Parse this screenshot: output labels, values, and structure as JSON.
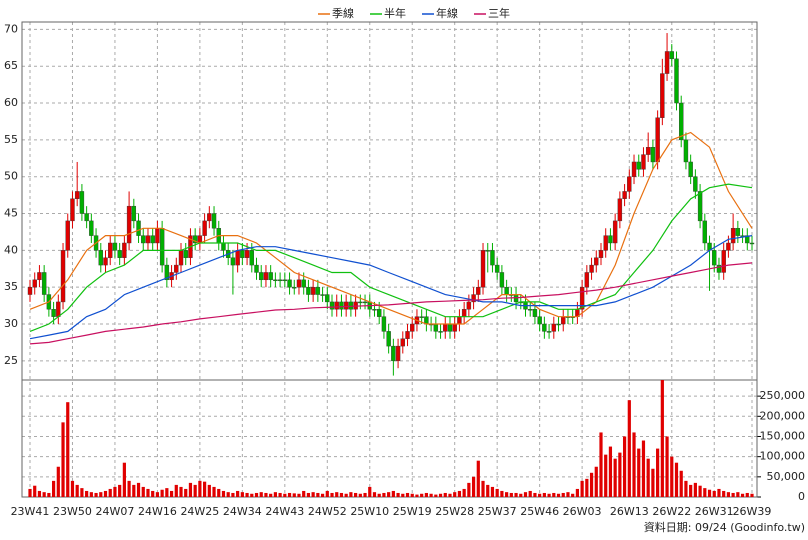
{
  "chart_data": {
    "type": "candlestick",
    "categories": [
      "23W41",
      null,
      null,
      null,
      null,
      null,
      null,
      null,
      null,
      "23W50",
      null,
      null,
      null,
      null,
      null,
      null,
      null,
      null,
      "24W07",
      null,
      null,
      null,
      null,
      null,
      null,
      null,
      null,
      "24W16",
      null,
      null,
      null,
      null,
      null,
      null,
      null,
      null,
      "24W25",
      null,
      null,
      null,
      null,
      null,
      null,
      null,
      null,
      "24W34",
      null,
      null,
      null,
      null,
      null,
      null,
      null,
      null,
      "24W43",
      null,
      null,
      null,
      null,
      null,
      null,
      null,
      null,
      "24W52",
      null,
      null,
      null,
      null,
      null,
      null,
      null,
      null,
      "25W10",
      null,
      null,
      null,
      null,
      null,
      null,
      null,
      null,
      "25W19",
      null,
      null,
      null,
      null,
      null,
      null,
      null,
      null,
      "25W28",
      null,
      null,
      null,
      null,
      null,
      null,
      null,
      null,
      "25W37",
      null,
      null,
      null,
      null,
      null,
      null,
      null,
      null,
      "25W46",
      null,
      null,
      null,
      null,
      null,
      null,
      null,
      null,
      "26W03",
      null,
      null,
      null,
      null,
      null,
      null,
      null,
      null,
      null,
      "26W13",
      null,
      null,
      null,
      null,
      null,
      null,
      null,
      null,
      "26W22",
      null,
      null,
      null,
      null,
      null,
      null,
      null,
      null,
      "26W31",
      null,
      null,
      null,
      null,
      null,
      null,
      null,
      "26W39"
    ],
    "ohlc": [
      [
        34,
        36,
        33,
        35
      ],
      [
        35,
        37,
        34,
        36
      ],
      [
        36,
        38,
        35,
        37
      ],
      [
        37,
        38,
        33,
        34
      ],
      [
        34,
        35,
        31,
        32
      ],
      [
        32,
        33,
        30,
        31
      ],
      [
        31,
        34,
        30,
        33
      ],
      [
        33,
        41,
        32,
        40
      ],
      [
        40,
        45,
        39,
        44
      ],
      [
        44,
        48,
        43,
        47
      ],
      [
        47,
        52,
        46,
        48
      ],
      [
        48,
        49,
        44,
        45
      ],
      [
        45,
        46,
        43,
        44
      ],
      [
        44,
        45,
        41,
        42
      ],
      [
        42,
        43,
        39,
        40
      ],
      [
        40,
        41,
        37,
        38
      ],
      [
        38,
        40,
        37,
        39
      ],
      [
        39,
        42,
        38,
        41
      ],
      [
        41,
        42,
        39,
        40
      ],
      [
        40,
        41,
        38,
        39
      ],
      [
        39,
        42,
        38,
        41
      ],
      [
        41,
        48,
        40,
        46
      ],
      [
        46,
        47,
        43,
        44
      ],
      [
        44,
        45,
        41,
        42
      ],
      [
        42,
        43,
        40,
        41
      ],
      [
        41,
        43,
        40,
        42
      ],
      [
        42,
        43,
        40,
        41
      ],
      [
        41,
        44,
        40,
        43
      ],
      [
        43,
        44,
        37,
        38
      ],
      [
        38,
        39,
        35,
        36
      ],
      [
        36,
        38,
        35,
        37
      ],
      [
        37,
        39,
        36,
        38
      ],
      [
        38,
        41,
        37,
        40
      ],
      [
        40,
        41,
        38,
        39
      ],
      [
        39,
        43,
        38,
        42
      ],
      [
        42,
        43,
        40,
        41
      ],
      [
        41,
        43,
        40,
        42
      ],
      [
        42,
        45,
        41,
        44
      ],
      [
        44,
        46,
        43,
        45
      ],
      [
        45,
        46,
        42,
        43
      ],
      [
        43,
        44,
        40,
        41
      ],
      [
        41,
        42,
        39,
        40
      ],
      [
        40,
        41,
        38,
        39
      ],
      [
        39,
        40,
        34,
        38
      ],
      [
        38,
        41,
        37,
        40
      ],
      [
        40,
        41,
        38,
        39
      ],
      [
        39,
        41,
        38,
        40
      ],
      [
        40,
        41,
        37,
        38
      ],
      [
        38,
        39,
        36,
        37
      ],
      [
        37,
        38,
        35,
        36
      ],
      [
        36,
        38,
        35,
        37
      ],
      [
        37,
        38,
        35,
        36
      ],
      [
        36,
        37,
        35,
        36
      ],
      [
        36,
        37,
        35,
        36
      ],
      [
        36,
        37,
        35,
        36
      ],
      [
        36,
        37,
        34,
        35
      ],
      [
        35,
        36,
        34,
        35
      ],
      [
        35,
        37,
        34,
        36
      ],
      [
        36,
        37,
        34,
        35
      ],
      [
        35,
        36,
        33,
        34
      ],
      [
        34,
        36,
        33,
        35
      ],
      [
        35,
        36,
        33,
        34
      ],
      [
        34,
        35,
        33,
        34
      ],
      [
        34,
        35,
        32,
        33
      ],
      [
        33,
        34,
        31,
        32
      ],
      [
        32,
        34,
        31,
        33
      ],
      [
        33,
        34,
        31,
        32
      ],
      [
        32,
        34,
        31,
        33
      ],
      [
        33,
        34,
        31,
        32
      ],
      [
        32,
        34,
        31,
        33
      ],
      [
        33,
        34,
        32,
        33
      ],
      [
        33,
        34,
        32,
        33
      ],
      [
        33,
        34,
        31,
        32
      ],
      [
        32,
        33,
        31,
        32
      ],
      [
        32,
        33,
        30,
        31
      ],
      [
        31,
        32,
        28,
        29
      ],
      [
        29,
        30,
        26,
        27
      ],
      [
        27,
        28,
        23,
        25
      ],
      [
        25,
        28,
        24,
        27
      ],
      [
        27,
        29,
        26,
        28
      ],
      [
        28,
        30,
        27,
        29
      ],
      [
        29,
        31,
        28,
        30
      ],
      [
        30,
        32,
        29,
        31
      ],
      [
        31,
        32,
        30,
        31
      ],
      [
        31,
        32,
        29,
        30
      ],
      [
        30,
        31,
        29,
        30
      ],
      [
        30,
        31,
        28,
        29
      ],
      [
        29,
        30,
        28,
        29
      ],
      [
        29,
        31,
        28,
        30
      ],
      [
        30,
        31,
        28,
        29
      ],
      [
        29,
        31,
        28,
        30
      ],
      [
        30,
        32,
        29,
        31
      ],
      [
        31,
        33,
        30,
        32
      ],
      [
        32,
        34,
        31,
        33
      ],
      [
        33,
        35,
        32,
        34
      ],
      [
        34,
        36,
        33,
        35
      ],
      [
        35,
        41,
        34,
        40
      ],
      [
        40,
        41,
        37,
        40
      ],
      [
        40,
        41,
        37,
        38
      ],
      [
        38,
        39,
        36,
        37
      ],
      [
        37,
        38,
        34,
        35
      ],
      [
        35,
        36,
        33,
        34
      ],
      [
        34,
        35,
        33,
        34
      ],
      [
        34,
        35,
        32,
        33
      ],
      [
        33,
        34,
        32,
        33
      ],
      [
        33,
        34,
        31,
        32
      ],
      [
        32,
        33,
        31,
        32
      ],
      [
        32,
        33,
        30,
        31
      ],
      [
        31,
        32,
        29,
        30
      ],
      [
        30,
        31,
        28,
        29
      ],
      [
        29,
        30,
        28,
        29
      ],
      [
        29,
        31,
        28,
        30
      ],
      [
        30,
        31,
        29,
        30
      ],
      [
        30,
        32,
        29,
        31
      ],
      [
        31,
        32,
        30,
        31
      ],
      [
        31,
        32,
        30,
        31
      ],
      [
        31,
        33,
        30,
        32
      ],
      [
        32,
        36,
        31,
        35
      ],
      [
        35,
        38,
        34,
        37
      ],
      [
        37,
        39,
        36,
        38
      ],
      [
        38,
        40,
        37,
        39
      ],
      [
        39,
        41,
        38,
        40
      ],
      [
        40,
        43,
        39,
        42
      ],
      [
        42,
        43,
        40,
        41
      ],
      [
        41,
        45,
        40,
        44
      ],
      [
        44,
        48,
        43,
        47
      ],
      [
        47,
        49,
        46,
        48
      ],
      [
        48,
        51,
        47,
        50
      ],
      [
        50,
        53,
        49,
        52
      ],
      [
        52,
        53,
        50,
        51
      ],
      [
        51,
        54,
        50,
        53
      ],
      [
        53,
        56,
        52,
        54
      ],
      [
        54,
        55,
        51,
        52
      ],
      [
        52,
        59,
        51,
        58
      ],
      [
        58,
        66,
        57,
        64
      ],
      [
        64,
        69.5,
        63,
        67
      ],
      [
        67,
        68,
        65,
        66
      ],
      [
        66,
        67,
        59,
        60
      ],
      [
        60,
        61,
        54,
        55
      ],
      [
        55,
        56,
        51,
        52
      ],
      [
        52,
        53,
        49,
        50
      ],
      [
        50,
        51,
        47,
        48
      ],
      [
        48,
        49,
        43,
        44
      ],
      [
        44,
        45,
        40,
        41
      ],
      [
        41,
        42,
        34.5,
        40
      ],
      [
        40,
        41,
        37,
        38
      ],
      [
        38,
        39,
        36,
        37
      ],
      [
        37,
        41,
        36,
        40
      ],
      [
        40,
        42,
        39,
        41
      ],
      [
        41,
        45,
        40,
        43
      ],
      [
        43,
        44,
        41,
        42
      ],
      [
        42,
        43,
        41,
        42
      ],
      [
        42,
        43,
        40,
        41
      ],
      [
        41,
        42,
        40,
        41
      ]
    ],
    "volume": [
      20000,
      28000,
      15000,
      12000,
      10000,
      40000,
      75000,
      185000,
      235000,
      40000,
      30000,
      22000,
      15000,
      12000,
      10000,
      12000,
      15000,
      20000,
      25000,
      30000,
      85000,
      40000,
      30000,
      35000,
      25000,
      20000,
      15000,
      12000,
      18000,
      22000,
      15000,
      30000,
      25000,
      20000,
      35000,
      30000,
      40000,
      38000,
      30000,
      25000,
      20000,
      15000,
      12000,
      10000,
      15000,
      12000,
      10000,
      8000,
      10000,
      12000,
      10000,
      8000,
      12000,
      10000,
      8000,
      10000,
      9000,
      8000,
      15000,
      10000,
      12000,
      10000,
      8000,
      15000,
      10000,
      12000,
      10000,
      8000,
      12000,
      10000,
      8000,
      10000,
      25000,
      12000,
      8000,
      10000,
      12000,
      15000,
      10000,
      8000,
      10000,
      8000,
      6000,
      8000,
      10000,
      8000,
      6000,
      8000,
      10000,
      8000,
      12000,
      15000,
      20000,
      35000,
      50000,
      90000,
      40000,
      30000,
      25000,
      20000,
      15000,
      12000,
      10000,
      10000,
      8000,
      12000,
      15000,
      10000,
      8000,
      10000,
      8000,
      10000,
      8000,
      10000,
      12000,
      8000,
      20000,
      40000,
      45000,
      60000,
      75000,
      160000,
      105000,
      125000,
      95000,
      110000,
      150000,
      240000,
      160000,
      120000,
      140000,
      95000,
      70000,
      120000,
      290000,
      150000,
      100000,
      85000,
      65000,
      40000,
      30000,
      35000,
      28000,
      22000,
      18000,
      15000,
      20000,
      15000,
      12000,
      10000,
      12000,
      8000,
      10000,
      8000
    ],
    "up_color": "#e00000",
    "down_color": "#00b000",
    "volume_color": "#e00000",
    "ylim": [
      22.4,
      71
    ],
    "yticks": [
      25,
      30,
      35,
      40,
      45,
      50,
      55,
      60,
      65,
      70
    ],
    "volume_ylim": [
      0,
      290000
    ],
    "volume_yticks": [
      0,
      {
        "value": 50000,
        "label": "50,000"
      },
      {
        "value": 100000,
        "label": "100,000"
      },
      {
        "value": 150000,
        "label": "150,000"
      },
      {
        "value": 200000,
        "label": "200,000"
      },
      {
        "value": 250000,
        "label": "250,000"
      }
    ],
    "grid": true,
    "series": [
      {
        "name": "季線",
        "color": "#e87010",
        "x": [
          0,
          4,
          8,
          12,
          16,
          20,
          24,
          28,
          32,
          36,
          40,
          44,
          48,
          52,
          56,
          60,
          64,
          68,
          72,
          76,
          80,
          84,
          88,
          92,
          96,
          100,
          104,
          108,
          112,
          116,
          120,
          124,
          128,
          132,
          136,
          140,
          144,
          148,
          153
        ],
        "values": [
          32,
          33,
          36,
          40,
          42,
          42,
          43,
          43,
          42,
          41,
          42,
          42,
          41,
          39,
          37,
          36,
          35,
          34,
          33,
          32,
          31,
          30,
          30,
          30,
          32,
          34,
          34,
          32,
          31,
          31,
          33,
          38,
          45,
          51,
          55,
          56,
          54,
          48,
          43
        ]
      },
      {
        "name": "半年",
        "color": "#10c010",
        "x": [
          0,
          4,
          8,
          12,
          16,
          20,
          24,
          28,
          32,
          36,
          40,
          44,
          48,
          52,
          56,
          60,
          64,
          68,
          72,
          76,
          80,
          84,
          88,
          92,
          96,
          100,
          104,
          108,
          112,
          116,
          120,
          124,
          128,
          132,
          136,
          140,
          144,
          148,
          153
        ],
        "values": [
          29,
          30,
          32,
          35,
          37,
          38,
          40,
          40,
          40,
          41,
          41,
          41,
          40,
          40,
          39,
          38,
          37,
          37,
          35,
          34,
          33,
          32,
          31,
          31,
          31,
          32,
          33,
          33,
          32,
          32,
          33,
          34,
          37,
          40,
          44,
          47,
          48.5,
          49,
          48.5
        ]
      },
      {
        "name": "年線",
        "color": "#1050d0",
        "x": [
          0,
          4,
          8,
          12,
          16,
          20,
          24,
          28,
          32,
          36,
          40,
          44,
          48,
          52,
          56,
          60,
          64,
          68,
          72,
          76,
          80,
          84,
          88,
          92,
          96,
          100,
          104,
          108,
          112,
          116,
          120,
          124,
          128,
          132,
          136,
          140,
          144,
          148,
          153
        ],
        "values": [
          28,
          28.5,
          29,
          31,
          32,
          34,
          35,
          36,
          37,
          38,
          39,
          40,
          40.5,
          40.5,
          40,
          39.5,
          39,
          38.5,
          38,
          37,
          36,
          35,
          34,
          33.5,
          33,
          33,
          32.5,
          32.5,
          32.5,
          32.5,
          32.5,
          33,
          34,
          35,
          36.5,
          38,
          40,
          41.5,
          42
        ]
      },
      {
        "name": "三年",
        "color": "#c81060",
        "x": [
          0,
          4,
          8,
          12,
          16,
          20,
          24,
          28,
          32,
          36,
          40,
          44,
          48,
          52,
          56,
          60,
          64,
          68,
          72,
          76,
          80,
          84,
          88,
          92,
          96,
          100,
          104,
          108,
          112,
          116,
          120,
          124,
          128,
          132,
          136,
          140,
          144,
          148,
          153
        ],
        "values": [
          27.3,
          27.5,
          28,
          28.5,
          29,
          29.3,
          29.6,
          30,
          30.3,
          30.7,
          31,
          31.3,
          31.6,
          31.9,
          32,
          32.2,
          32.3,
          32.4,
          32.5,
          32.6,
          32.8,
          33,
          33.1,
          33.2,
          33.3,
          33.5,
          33.6,
          33.8,
          34,
          34.3,
          34.6,
          35,
          35.5,
          36,
          36.5,
          37,
          37.5,
          38,
          38.3
        ]
      }
    ],
    "source": "資料日期: 09/24 (Goodinfo.tw)"
  }
}
